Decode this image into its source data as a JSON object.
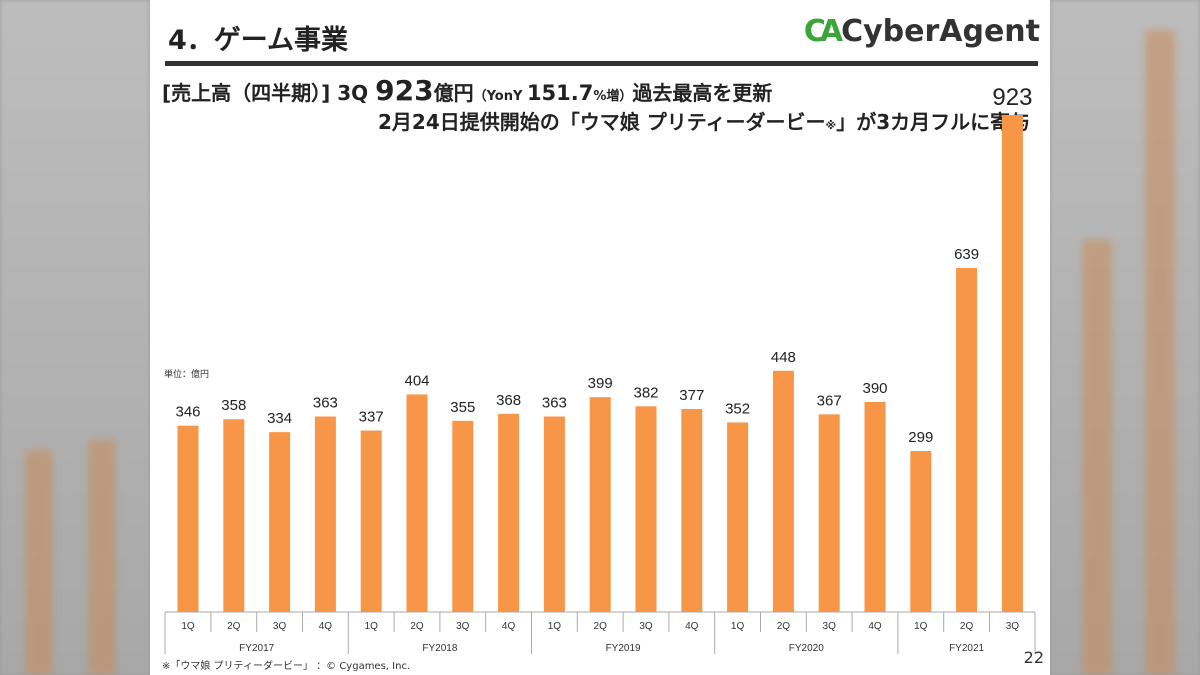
{
  "slide": {
    "title": "4．ゲーム事業",
    "logo": "CyberAgent",
    "headline": {
      "prefix": "[売上高（四半期）] 3Q ",
      "value": "923",
      "unit": "億円",
      "yoy_open": "（YonY ",
      "yoy_value": "151.7",
      "yoy_unit": "%増",
      "yoy_close": "）",
      "suffix": "過去最高を更新"
    },
    "subheadline": {
      "text1": "2月24日提供開始の「ウマ娘 プリティーダービー",
      "mark": "※",
      "text2": "」が3カ月フルに寄与"
    },
    "unit_label": "単位：億円",
    "footnote": "※「ウマ娘 プリティーダービー」 ：© Cygames, Inc.",
    "page_number": "22"
  },
  "chart_data": {
    "type": "bar",
    "title": "",
    "ylabel": "単位：億円",
    "ylim": [
      0,
      923
    ],
    "grid": false,
    "bar_color": "#f79646",
    "groups": [
      {
        "label": "FY2017",
        "quarters": [
          "1Q",
          "2Q",
          "3Q",
          "4Q"
        ],
        "values": [
          346,
          358,
          334,
          363
        ]
      },
      {
        "label": "FY2018",
        "quarters": [
          "1Q",
          "2Q",
          "3Q",
          "4Q"
        ],
        "values": [
          337,
          404,
          355,
          368
        ]
      },
      {
        "label": "FY2019",
        "quarters": [
          "1Q",
          "2Q",
          "3Q",
          "4Q"
        ],
        "values": [
          363,
          399,
          382,
          377
        ]
      },
      {
        "label": "FY2020",
        "quarters": [
          "1Q",
          "2Q",
          "3Q",
          "4Q"
        ],
        "values": [
          352,
          448,
          367,
          390
        ]
      },
      {
        "label": "FY2021",
        "quarters": [
          "1Q",
          "2Q",
          "3Q"
        ],
        "values": [
          299,
          639,
          923
        ]
      }
    ]
  }
}
